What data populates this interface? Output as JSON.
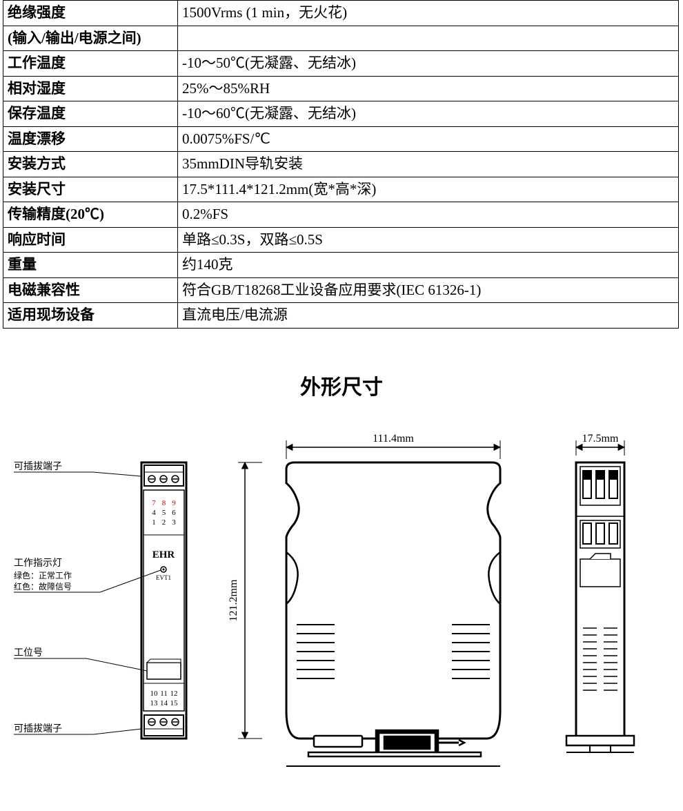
{
  "spec_table": {
    "rows": [
      {
        "label": "绝缘强度",
        "value": "1500Vrms (1 min，无火花)"
      },
      {
        "label": "(输入/输出/电源之间)",
        "value": ""
      },
      {
        "label": "工作温度",
        "value": "-10～50℃(无凝露、无结冰)"
      },
      {
        "label": "相对湿度",
        "value": "25%～85%RH"
      },
      {
        "label": "保存温度",
        "value": "-10～60℃(无凝露、无结冰)"
      },
      {
        "label": "温度漂移",
        "value": "0.0075%FS/℃"
      },
      {
        "label": "安装方式",
        "value": "35mmDIN导轨安装"
      },
      {
        "label": "安装尺寸",
        "value": "17.5*111.4*121.2mm(宽*高*深)"
      },
      {
        "label": "传输精度(20℃)",
        "value": "0.2%FS"
      },
      {
        "label": "响应时间",
        "value": "单路≤0.3S，双路≤0.5S"
      },
      {
        "label": "重量",
        "value": "约140克"
      },
      {
        "label": "电磁兼容性",
        "value": "符合GB/T18268工业设备应用要求(IEC 61326-1)"
      },
      {
        "label": "适用现场设备",
        "value": "直流电压/电流源"
      }
    ]
  },
  "section_title": "外形尺寸",
  "diagram": {
    "width_mm_label": "111.4mm",
    "height_mm_label": "121.2mm",
    "depth_mm_label": "17.5mm",
    "callouts": {
      "top_terminal": "可插拔端子",
      "led_title": "工作指示灯",
      "led_line1": "绿色：正常工作",
      "led_line2": "红色：故障信号",
      "tag": "工位号",
      "bottom_terminal": "可插拔端子"
    },
    "front_panel": {
      "brand": "EHR",
      "evt": "EVT1",
      "pins_top": [
        [
          "7",
          "8",
          "9"
        ],
        [
          "4",
          "5",
          "6"
        ],
        [
          "1",
          "2",
          "3"
        ]
      ],
      "pins_bottom": [
        [
          "10",
          "11",
          "12"
        ],
        [
          "13",
          "14",
          "15"
        ]
      ]
    },
    "fontsize": {
      "callout": 14,
      "callout_small": 12,
      "dim": 16,
      "brand": 15,
      "evt": 9,
      "pins": 11
    },
    "colors": {
      "line": "#000000",
      "fill": "#ffffff",
      "red": "#c00000"
    }
  }
}
